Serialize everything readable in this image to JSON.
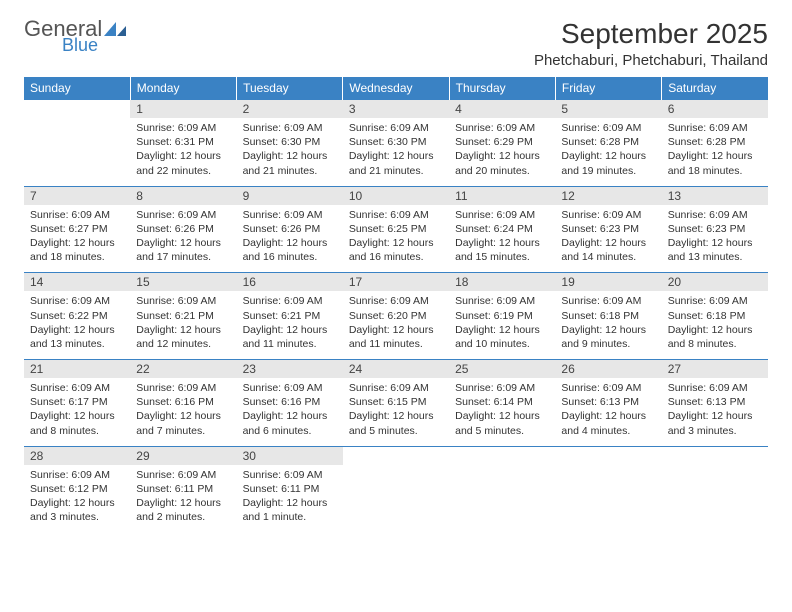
{
  "brand": {
    "general": "General",
    "blue": "Blue"
  },
  "title": "September 2025",
  "location": "Phetchaburi, Phetchaburi, Thailand",
  "colors": {
    "header_bg": "#3a82c4",
    "header_text": "#ffffff",
    "daynum_bg": "#e7e7e7",
    "row_rule": "#3a82c4",
    "body_text": "#333333",
    "logo_gray": "#555555",
    "logo_blue": "#3a82c4",
    "page_bg": "#ffffff"
  },
  "typography": {
    "title_fontsize": 28,
    "location_fontsize": 15,
    "weekday_fontsize": 12,
    "daynum_fontsize": 12,
    "body_fontsize": 10.5
  },
  "weekdays": [
    "Sunday",
    "Monday",
    "Tuesday",
    "Wednesday",
    "Thursday",
    "Friday",
    "Saturday"
  ],
  "weeks": [
    [
      {
        "n": "",
        "lines": [
          "",
          "",
          "",
          ""
        ]
      },
      {
        "n": "1",
        "lines": [
          "Sunrise: 6:09 AM",
          "Sunset: 6:31 PM",
          "Daylight: 12 hours",
          "and 22 minutes."
        ]
      },
      {
        "n": "2",
        "lines": [
          "Sunrise: 6:09 AM",
          "Sunset: 6:30 PM",
          "Daylight: 12 hours",
          "and 21 minutes."
        ]
      },
      {
        "n": "3",
        "lines": [
          "Sunrise: 6:09 AM",
          "Sunset: 6:30 PM",
          "Daylight: 12 hours",
          "and 21 minutes."
        ]
      },
      {
        "n": "4",
        "lines": [
          "Sunrise: 6:09 AM",
          "Sunset: 6:29 PM",
          "Daylight: 12 hours",
          "and 20 minutes."
        ]
      },
      {
        "n": "5",
        "lines": [
          "Sunrise: 6:09 AM",
          "Sunset: 6:28 PM",
          "Daylight: 12 hours",
          "and 19 minutes."
        ]
      },
      {
        "n": "6",
        "lines": [
          "Sunrise: 6:09 AM",
          "Sunset: 6:28 PM",
          "Daylight: 12 hours",
          "and 18 minutes."
        ]
      }
    ],
    [
      {
        "n": "7",
        "lines": [
          "Sunrise: 6:09 AM",
          "Sunset: 6:27 PM",
          "Daylight: 12 hours",
          "and 18 minutes."
        ]
      },
      {
        "n": "8",
        "lines": [
          "Sunrise: 6:09 AM",
          "Sunset: 6:26 PM",
          "Daylight: 12 hours",
          "and 17 minutes."
        ]
      },
      {
        "n": "9",
        "lines": [
          "Sunrise: 6:09 AM",
          "Sunset: 6:26 PM",
          "Daylight: 12 hours",
          "and 16 minutes."
        ]
      },
      {
        "n": "10",
        "lines": [
          "Sunrise: 6:09 AM",
          "Sunset: 6:25 PM",
          "Daylight: 12 hours",
          "and 16 minutes."
        ]
      },
      {
        "n": "11",
        "lines": [
          "Sunrise: 6:09 AM",
          "Sunset: 6:24 PM",
          "Daylight: 12 hours",
          "and 15 minutes."
        ]
      },
      {
        "n": "12",
        "lines": [
          "Sunrise: 6:09 AM",
          "Sunset: 6:23 PM",
          "Daylight: 12 hours",
          "and 14 minutes."
        ]
      },
      {
        "n": "13",
        "lines": [
          "Sunrise: 6:09 AM",
          "Sunset: 6:23 PM",
          "Daylight: 12 hours",
          "and 13 minutes."
        ]
      }
    ],
    [
      {
        "n": "14",
        "lines": [
          "Sunrise: 6:09 AM",
          "Sunset: 6:22 PM",
          "Daylight: 12 hours",
          "and 13 minutes."
        ]
      },
      {
        "n": "15",
        "lines": [
          "Sunrise: 6:09 AM",
          "Sunset: 6:21 PM",
          "Daylight: 12 hours",
          "and 12 minutes."
        ]
      },
      {
        "n": "16",
        "lines": [
          "Sunrise: 6:09 AM",
          "Sunset: 6:21 PM",
          "Daylight: 12 hours",
          "and 11 minutes."
        ]
      },
      {
        "n": "17",
        "lines": [
          "Sunrise: 6:09 AM",
          "Sunset: 6:20 PM",
          "Daylight: 12 hours",
          "and 11 minutes."
        ]
      },
      {
        "n": "18",
        "lines": [
          "Sunrise: 6:09 AM",
          "Sunset: 6:19 PM",
          "Daylight: 12 hours",
          "and 10 minutes."
        ]
      },
      {
        "n": "19",
        "lines": [
          "Sunrise: 6:09 AM",
          "Sunset: 6:18 PM",
          "Daylight: 12 hours",
          "and 9 minutes."
        ]
      },
      {
        "n": "20",
        "lines": [
          "Sunrise: 6:09 AM",
          "Sunset: 6:18 PM",
          "Daylight: 12 hours",
          "and 8 minutes."
        ]
      }
    ],
    [
      {
        "n": "21",
        "lines": [
          "Sunrise: 6:09 AM",
          "Sunset: 6:17 PM",
          "Daylight: 12 hours",
          "and 8 minutes."
        ]
      },
      {
        "n": "22",
        "lines": [
          "Sunrise: 6:09 AM",
          "Sunset: 6:16 PM",
          "Daylight: 12 hours",
          "and 7 minutes."
        ]
      },
      {
        "n": "23",
        "lines": [
          "Sunrise: 6:09 AM",
          "Sunset: 6:16 PM",
          "Daylight: 12 hours",
          "and 6 minutes."
        ]
      },
      {
        "n": "24",
        "lines": [
          "Sunrise: 6:09 AM",
          "Sunset: 6:15 PM",
          "Daylight: 12 hours",
          "and 5 minutes."
        ]
      },
      {
        "n": "25",
        "lines": [
          "Sunrise: 6:09 AM",
          "Sunset: 6:14 PM",
          "Daylight: 12 hours",
          "and 5 minutes."
        ]
      },
      {
        "n": "26",
        "lines": [
          "Sunrise: 6:09 AM",
          "Sunset: 6:13 PM",
          "Daylight: 12 hours",
          "and 4 minutes."
        ]
      },
      {
        "n": "27",
        "lines": [
          "Sunrise: 6:09 AM",
          "Sunset: 6:13 PM",
          "Daylight: 12 hours",
          "and 3 minutes."
        ]
      }
    ],
    [
      {
        "n": "28",
        "lines": [
          "Sunrise: 6:09 AM",
          "Sunset: 6:12 PM",
          "Daylight: 12 hours",
          "and 3 minutes."
        ]
      },
      {
        "n": "29",
        "lines": [
          "Sunrise: 6:09 AM",
          "Sunset: 6:11 PM",
          "Daylight: 12 hours",
          "and 2 minutes."
        ]
      },
      {
        "n": "30",
        "lines": [
          "Sunrise: 6:09 AM",
          "Sunset: 6:11 PM",
          "Daylight: 12 hours",
          "and 1 minute."
        ]
      },
      {
        "n": "",
        "lines": [
          "",
          "",
          "",
          ""
        ]
      },
      {
        "n": "",
        "lines": [
          "",
          "",
          "",
          ""
        ]
      },
      {
        "n": "",
        "lines": [
          "",
          "",
          "",
          ""
        ]
      },
      {
        "n": "",
        "lines": [
          "",
          "",
          "",
          ""
        ]
      }
    ]
  ]
}
